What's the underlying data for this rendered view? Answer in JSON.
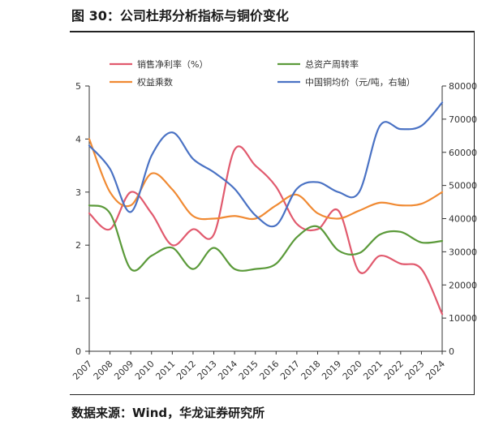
{
  "title": "图 30：公司杜邦分析指标与铜价变化",
  "source": "数据来源：Wind，华龙证券研究所",
  "chart_data": {
    "type": "line",
    "categories": [
      "2007",
      "2008",
      "2009",
      "2010",
      "2011",
      "2012",
      "2013",
      "2014",
      "2015",
      "2016",
      "2017",
      "2018",
      "2019",
      "2020",
      "2021",
      "2022",
      "2023",
      "2024"
    ],
    "left_axis": {
      "ylim": [
        0,
        5
      ],
      "ticks": [
        "0",
        "1",
        "2",
        "3",
        "4",
        "5"
      ]
    },
    "right_axis": {
      "ylim": [
        0,
        80000
      ],
      "ticks": [
        "0",
        "10000",
        "20000",
        "30000",
        "40000",
        "50000",
        "60000",
        "70000",
        "80000"
      ]
    },
    "legend_position": "top",
    "series": [
      {
        "name": "销售净利率（%）",
        "axis": "left",
        "color": "#E15A6E",
        "values": [
          2.6,
          2.3,
          3.0,
          2.6,
          2.0,
          2.3,
          2.2,
          3.8,
          3.5,
          3.1,
          2.4,
          2.3,
          2.65,
          1.5,
          1.8,
          1.65,
          1.55,
          0.7
        ]
      },
      {
        "name": "总资产周转率",
        "axis": "left",
        "color": "#5B9A3A",
        "values": [
          2.75,
          2.6,
          1.55,
          1.8,
          1.95,
          1.55,
          1.95,
          1.55,
          1.55,
          1.65,
          2.15,
          2.35,
          1.9,
          1.85,
          2.2,
          2.25,
          2.05,
          2.08
        ]
      },
      {
        "name": "权益乘数",
        "axis": "left",
        "color": "#F08A33",
        "values": [
          4.0,
          3.0,
          2.75,
          3.35,
          3.05,
          2.55,
          2.5,
          2.55,
          2.5,
          2.75,
          2.95,
          2.6,
          2.5,
          2.65,
          2.8,
          2.75,
          2.78,
          3.0
        ]
      },
      {
        "name": "中国铜均价（元/吨，右轴）",
        "axis": "right",
        "color": "#4A72C4",
        "values": [
          62000,
          55000,
          42000,
          59000,
          66000,
          58000,
          54000,
          49000,
          41000,
          38000,
          49000,
          51000,
          48000,
          48000,
          68000,
          67000,
          68000,
          75000
        ]
      }
    ]
  }
}
